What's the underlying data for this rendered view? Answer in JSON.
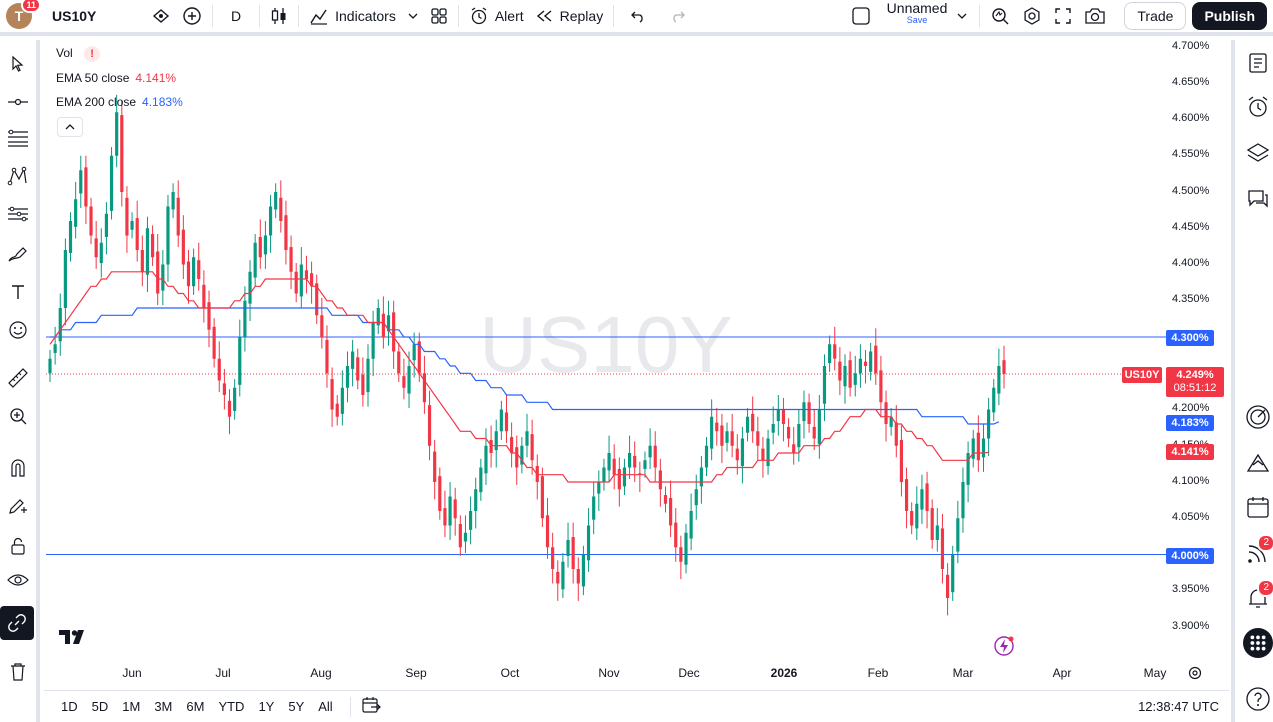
{
  "topbar": {
    "avatar_letter": "T",
    "notification_count": "11",
    "symbol": "US10Y",
    "interval": "D",
    "indicators_label": "Indicators",
    "alert_label": "Alert",
    "replay_label": "Replay",
    "layout_name": "Unnamed",
    "save_label": "Save",
    "trade_label": "Trade",
    "publish_label": "Publish"
  },
  "legend": {
    "vol_label": "Vol",
    "vol_warning": "!",
    "ema50_label": "EMA 50 close",
    "ema50_value": "4.141%",
    "ema200_label": "EMA 200 close",
    "ema200_value": "4.183%",
    "collapse_icon": "chevron-up-icon"
  },
  "watermark": "US10Y",
  "price_axis": {
    "labels": [
      "4.700%",
      "4.650%",
      "4.600%",
      "4.550%",
      "4.500%",
      "4.450%",
      "4.400%",
      "4.350%",
      "4.300%",
      "4.250%",
      "4.200%",
      "4.150%",
      "4.100%",
      "4.050%",
      "4.000%",
      "3.950%",
      "3.900%"
    ],
    "line_4300": "4.300%",
    "current_symbol": "US10Y",
    "current_price": "4.249%",
    "countdown": "08:51:12",
    "ema200_tag": "4.183%",
    "ema50_tag": "4.141%",
    "line_4000": "4.000%"
  },
  "time_axis": {
    "months": [
      "Jun",
      "Jul",
      "Aug",
      "Sep",
      "Oct",
      "Nov",
      "Dec",
      "2026",
      "Feb",
      "Mar",
      "Apr",
      "May"
    ]
  },
  "bottombar": {
    "timeframes": [
      "1D",
      "5D",
      "1M",
      "3M",
      "6M",
      "YTD",
      "1Y",
      "5Y",
      "All"
    ],
    "clock": "12:38:47 UTC"
  },
  "rightbar": {
    "ideas_badge": "2",
    "alerts_badge": "2"
  },
  "colors": {
    "up": "#089981",
    "down": "#f23645",
    "ema50": "#f23645",
    "ema200": "#2962ff",
    "hline": "#2962ff",
    "current": "#f23645"
  },
  "chart_data": {
    "type": "candlestick",
    "symbol": "US10Y",
    "ylim": [
      3.88,
      4.72
    ],
    "hlines": [
      4.3,
      4.0
    ],
    "current_price": 4.249,
    "closes": [
      4.27,
      4.29,
      4.34,
      4.42,
      4.46,
      4.49,
      4.53,
      4.48,
      4.44,
      4.41,
      4.43,
      4.47,
      4.55,
      4.61,
      4.5,
      4.44,
      4.46,
      4.42,
      4.39,
      4.45,
      4.41,
      4.36,
      4.4,
      4.48,
      4.5,
      4.44,
      4.4,
      4.37,
      4.41,
      4.38,
      4.34,
      4.31,
      4.27,
      4.24,
      4.22,
      4.19,
      4.23,
      4.3,
      4.35,
      4.39,
      4.43,
      4.41,
      4.44,
      4.48,
      4.5,
      4.46,
      4.42,
      4.39,
      4.36,
      4.4,
      4.38,
      4.37,
      4.33,
      4.3,
      4.25,
      4.2,
      4.19,
      4.23,
      4.26,
      4.28,
      4.24,
      4.22,
      4.27,
      4.32,
      4.34,
      4.3,
      4.33,
      4.28,
      4.25,
      4.23,
      4.26,
      4.29,
      4.25,
      4.21,
      4.15,
      4.1,
      4.06,
      4.04,
      4.08,
      4.05,
      4.01,
      4.03,
      4.06,
      4.09,
      4.12,
      4.15,
      4.14,
      4.17,
      4.2,
      4.17,
      4.14,
      4.12,
      4.15,
      4.17,
      4.13,
      4.1,
      4.05,
      4.01,
      3.98,
      3.96,
      3.99,
      4.02,
      3.98,
      3.96,
      4.0,
      4.04,
      4.08,
      4.1,
      4.12,
      4.14,
      4.11,
      4.09,
      4.12,
      4.14,
      4.12,
      4.11,
      4.13,
      4.15,
      4.12,
      4.09,
      4.07,
      4.04,
      4.01,
      3.99,
      4.03,
      4.06,
      4.09,
      4.12,
      4.15,
      4.19,
      4.17,
      4.15,
      4.17,
      4.15,
      4.13,
      4.16,
      4.19,
      4.17,
      4.15,
      4.13,
      4.16,
      4.18,
      4.2,
      4.18,
      4.16,
      4.14,
      4.18,
      4.21,
      4.18,
      4.16,
      4.2,
      4.26,
      4.29,
      4.27,
      4.24,
      4.26,
      4.23,
      4.25,
      4.27,
      4.26,
      4.28,
      4.25,
      4.21,
      4.18,
      4.19,
      4.15,
      4.1,
      4.06,
      4.04,
      4.07,
      4.09,
      4.06,
      4.02,
      4.04,
      3.98,
      3.94,
      4.0,
      4.05,
      4.1,
      4.14,
      4.16,
      4.13,
      4.16,
      4.2,
      4.23,
      4.26,
      4.249
    ],
    "ema50": [
      4.29,
      4.3,
      4.31,
      4.32,
      4.33,
      4.34,
      4.35,
      4.36,
      4.37,
      4.37,
      4.38,
      4.38,
      4.39,
      4.39,
      4.39,
      4.39,
      4.39,
      4.39,
      4.39,
      4.39,
      4.39,
      4.38,
      4.38,
      4.37,
      4.37,
      4.36,
      4.36,
      4.35,
      4.35,
      4.34,
      4.34,
      4.34,
      4.34,
      4.34,
      4.34,
      4.34,
      4.35,
      4.35,
      4.36,
      4.36,
      4.37,
      4.37,
      4.38,
      4.38,
      4.38,
      4.38,
      4.38,
      4.38,
      4.38,
      4.38,
      4.38,
      4.37,
      4.37,
      4.36,
      4.35,
      4.35,
      4.34,
      4.34,
      4.33,
      4.33,
      4.33,
      4.33,
      4.32,
      4.32,
      4.32,
      4.32,
      4.31,
      4.3,
      4.29,
      4.28,
      4.27,
      4.26,
      4.25,
      4.24,
      4.23,
      4.22,
      4.21,
      4.2,
      4.19,
      4.18,
      4.17,
      4.17,
      4.17,
      4.16,
      4.16,
      4.16,
      4.15,
      4.15,
      4.15,
      4.15,
      4.14,
      4.14,
      4.13,
      4.12,
      4.12,
      4.11,
      4.11,
      4.11,
      4.11,
      4.11,
      4.11,
      4.1,
      4.1,
      4.1,
      4.1,
      4.1,
      4.1,
      4.1,
      4.1,
      4.1,
      4.11,
      4.11,
      4.11,
      4.11,
      4.11,
      4.11,
      4.11,
      4.1,
      4.1,
      4.1,
      4.1,
      4.1,
      4.1,
      4.1,
      4.1,
      4.1,
      4.1,
      4.1,
      4.1,
      4.1,
      4.11,
      4.11,
      4.12,
      4.12,
      4.12,
      4.12,
      4.12,
      4.12,
      4.13,
      4.13,
      4.13,
      4.13,
      4.14,
      4.14,
      4.14,
      4.14,
      4.14,
      4.15,
      4.15,
      4.15,
      4.15,
      4.16,
      4.16,
      4.17,
      4.17,
      4.18,
      4.19,
      4.19,
      4.19,
      4.2,
      4.2,
      4.2,
      4.19,
      4.19,
      4.19,
      4.18,
      4.18,
      4.17,
      4.17,
      4.16,
      4.16,
      4.15,
      4.15,
      4.14,
      4.13,
      4.13,
      4.13,
      4.13,
      4.13,
      4.13,
      4.14,
      4.14,
      4.14,
      4.141
    ],
    "ema200": [
      4.3,
      4.3,
      4.31,
      4.31,
      4.31,
      4.32,
      4.32,
      4.32,
      4.32,
      4.32,
      4.33,
      4.33,
      4.33,
      4.33,
      4.33,
      4.33,
      4.33,
      4.34,
      4.34,
      4.34,
      4.34,
      4.34,
      4.34,
      4.34,
      4.34,
      4.34,
      4.34,
      4.34,
      4.34,
      4.34,
      4.34,
      4.34,
      4.34,
      4.34,
      4.34,
      4.34,
      4.34,
      4.34,
      4.34,
      4.34,
      4.34,
      4.34,
      4.34,
      4.34,
      4.34,
      4.34,
      4.34,
      4.34,
      4.34,
      4.34,
      4.34,
      4.34,
      4.34,
      4.34,
      4.34,
      4.33,
      4.33,
      4.33,
      4.33,
      4.33,
      4.33,
      4.32,
      4.32,
      4.32,
      4.32,
      4.32,
      4.31,
      4.31,
      4.31,
      4.3,
      4.3,
      4.29,
      4.29,
      4.28,
      4.28,
      4.28,
      4.27,
      4.27,
      4.26,
      4.26,
      4.25,
      4.25,
      4.25,
      4.24,
      4.24,
      4.24,
      4.23,
      4.23,
      4.23,
      4.22,
      4.22,
      4.22,
      4.22,
      4.21,
      4.21,
      4.21,
      4.21,
      4.21,
      4.2,
      4.2,
      4.2,
      4.2,
      4.2,
      4.2,
      4.2,
      4.2,
      4.2,
      4.2,
      4.2,
      4.2,
      4.2,
      4.2,
      4.2,
      4.2,
      4.2,
      4.2,
      4.2,
      4.2,
      4.2,
      4.2,
      4.2,
      4.2,
      4.2,
      4.2,
      4.2,
      4.2,
      4.2,
      4.2,
      4.2,
      4.2,
      4.2,
      4.2,
      4.2,
      4.2,
      4.2,
      4.2,
      4.2,
      4.2,
      4.2,
      4.2,
      4.2,
      4.2,
      4.2,
      4.2,
      4.2,
      4.2,
      4.2,
      4.2,
      4.2,
      4.2,
      4.2,
      4.2,
      4.2,
      4.2,
      4.2,
      4.2,
      4.2,
      4.2,
      4.2,
      4.2,
      4.2,
      4.2,
      4.2,
      4.2,
      4.2,
      4.2,
      4.2,
      4.2,
      4.2,
      4.2,
      4.19,
      4.19,
      4.19,
      4.19,
      4.19,
      4.19,
      4.19,
      4.19,
      4.19,
      4.18,
      4.18,
      4.18,
      4.18,
      4.18,
      4.18,
      4.183
    ]
  }
}
